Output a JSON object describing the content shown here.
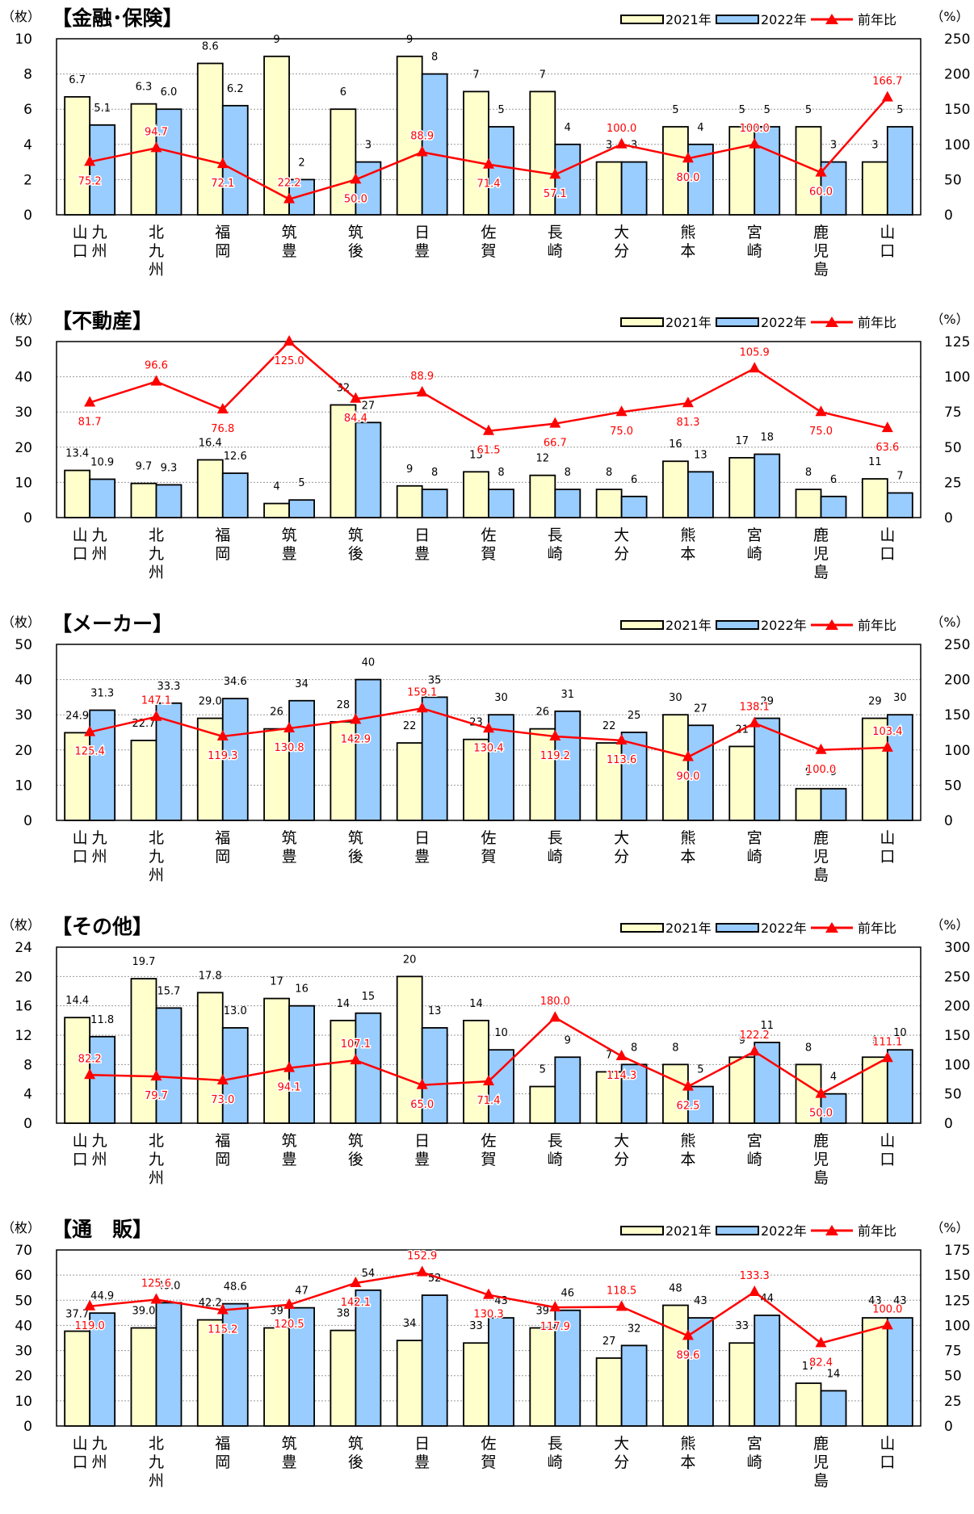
{
  "legend": {
    "bar1": "2021年",
    "bar2": "2022年",
    "line": "前年比"
  },
  "colors": {
    "bar1": "#ffffcc",
    "bar2": "#99ccff",
    "line": "#ff0000",
    "label": "#ff0000",
    "text": "#000000"
  },
  "chart_data": [
    {
      "type": "bar",
      "title": "【金融･保険】",
      "y_unit": "（枚）",
      "y2_unit": "（%）",
      "ylim": [
        0,
        10
      ],
      "yticks": [
        0,
        2,
        4,
        6,
        8,
        10
      ],
      "y2lim": [
        0,
        250
      ],
      "y2ticks": [
        0,
        50,
        100,
        150,
        200,
        250
      ],
      "categories": [
        "山口九州",
        "北九州",
        "福岡",
        "筑豊",
        "筑後",
        "日豊",
        "佐賀",
        "長崎",
        "大分",
        "熊本",
        "宮崎",
        "鹿児島",
        "山口"
      ],
      "category_labels": [
        [
          "山口",
          "九州"
        ],
        [
          "北九州"
        ],
        [
          "福岡"
        ],
        [
          "筑豊"
        ],
        [
          "筑後"
        ],
        [
          "日豊"
        ],
        [
          "佐賀"
        ],
        [
          "長崎"
        ],
        [
          "大分"
        ],
        [
          "熊本"
        ],
        [
          "宮崎"
        ],
        [
          "鹿児島"
        ],
        [
          "山口"
        ]
      ],
      "series": [
        {
          "name": "2021年",
          "values": [
            6.7,
            6.3,
            8.6,
            9,
            6,
            9,
            7,
            7,
            3,
            5,
            5,
            5,
            3
          ],
          "labels": [
            "6.7",
            "6.3",
            "8.6",
            "9",
            "6",
            "9",
            "7",
            "7",
            "3",
            "5",
            "5",
            "5",
            "3"
          ]
        },
        {
          "name": "2022年",
          "values": [
            5.1,
            6.0,
            6.2,
            2,
            3,
            8,
            5,
            4,
            3,
            4,
            5,
            3,
            5
          ],
          "labels": [
            "5.1",
            "6.0",
            "6.2",
            "2",
            "3",
            "8",
            "5",
            "4",
            "3",
            "4",
            "5",
            "3",
            "5"
          ]
        },
        {
          "name": "前年比",
          "axis": "y2",
          "values": [
            75.2,
            94.7,
            72.1,
            22.2,
            50.0,
            88.9,
            71.4,
            57.1,
            100.0,
            80.0,
            100.0,
            60.0,
            166.7
          ],
          "labels": [
            "75.2",
            "94.7",
            "72.1",
            "22.2",
            "50.0",
            "88.9",
            "71.4",
            "57.1",
            "100.0",
            "80.0",
            "100.0",
            "60.0",
            "166.7"
          ]
        }
      ]
    },
    {
      "type": "bar",
      "title": "【不動産】",
      "y_unit": "（枚）",
      "y2_unit": "（%）",
      "ylim": [
        0,
        50
      ],
      "yticks": [
        0,
        10,
        20,
        30,
        40,
        50
      ],
      "y2lim": [
        0,
        125
      ],
      "y2ticks": [
        0,
        25,
        50,
        75,
        100,
        125
      ],
      "categories": [
        "山口九州",
        "北九州",
        "福岡",
        "筑豊",
        "筑後",
        "日豊",
        "佐賀",
        "長崎",
        "大分",
        "熊本",
        "宮崎",
        "鹿児島",
        "山口"
      ],
      "category_labels": [
        [
          "山口",
          "九州"
        ],
        [
          "北九州"
        ],
        [
          "福岡"
        ],
        [
          "筑豊"
        ],
        [
          "筑後"
        ],
        [
          "日豊"
        ],
        [
          "佐賀"
        ],
        [
          "長崎"
        ],
        [
          "大分"
        ],
        [
          "熊本"
        ],
        [
          "宮崎"
        ],
        [
          "鹿児島"
        ],
        [
          "山口"
        ]
      ],
      "series": [
        {
          "name": "2021年",
          "values": [
            13.4,
            9.7,
            16.4,
            4,
            32,
            9,
            13,
            12,
            8,
            16,
            17,
            8,
            11
          ],
          "labels": [
            "13.4",
            "9.7",
            "16.4",
            "4",
            "32",
            "9",
            "13",
            "12",
            "8",
            "16",
            "17",
            "8",
            "11"
          ]
        },
        {
          "name": "2022年",
          "values": [
            10.9,
            9.3,
            12.6,
            5,
            27,
            8,
            8,
            8,
            6,
            13,
            18,
            6,
            7
          ],
          "labels": [
            "10.9",
            "9.3",
            "12.6",
            "5",
            "27",
            "8",
            "8",
            "8",
            "6",
            "13",
            "18",
            "6",
            "7"
          ]
        },
        {
          "name": "前年比",
          "axis": "y2",
          "values": [
            81.7,
            96.6,
            76.8,
            125.0,
            84.4,
            88.9,
            61.5,
            66.7,
            75.0,
            81.3,
            105.9,
            75.0,
            63.6
          ],
          "labels": [
            "81.7",
            "96.6",
            "76.8",
            "125.0",
            "84.4",
            "88.9",
            "61.5",
            "66.7",
            "75.0",
            "81.3",
            "105.9",
            "75.0",
            "63.6"
          ]
        }
      ]
    },
    {
      "type": "bar",
      "title": "【メーカー】",
      "y_unit": "（枚）",
      "y2_unit": "（%）",
      "ylim": [
        0,
        50
      ],
      "yticks": [
        0,
        10,
        20,
        30,
        40,
        50
      ],
      "y2lim": [
        0,
        250
      ],
      "y2ticks": [
        0,
        50,
        100,
        150,
        200,
        250
      ],
      "categories": [
        "山口九州",
        "北九州",
        "福岡",
        "筑豊",
        "筑後",
        "日豊",
        "佐賀",
        "長崎",
        "大分",
        "熊本",
        "宮崎",
        "鹿児島",
        "山口"
      ],
      "category_labels": [
        [
          "山口",
          "九州"
        ],
        [
          "北九州"
        ],
        [
          "福岡"
        ],
        [
          "筑豊"
        ],
        [
          "筑後"
        ],
        [
          "日豊"
        ],
        [
          "佐賀"
        ],
        [
          "長崎"
        ],
        [
          "大分"
        ],
        [
          "熊本"
        ],
        [
          "宮崎"
        ],
        [
          "鹿児島"
        ],
        [
          "山口"
        ]
      ],
      "series": [
        {
          "name": "2021年",
          "values": [
            24.9,
            22.7,
            29.0,
            26,
            28,
            22,
            23,
            26,
            22,
            30,
            21,
            9,
            29
          ],
          "labels": [
            "24.9",
            "22.7",
            "29.0",
            "26",
            "28",
            "22",
            "23",
            "26",
            "22",
            "30",
            "21",
            "9",
            "29"
          ]
        },
        {
          "name": "2022年",
          "values": [
            31.3,
            33.3,
            34.6,
            34,
            40,
            35,
            30,
            31,
            25,
            27,
            29,
            9,
            30
          ],
          "labels": [
            "31.3",
            "33.3",
            "34.6",
            "34",
            "40",
            "35",
            "30",
            "31",
            "25",
            "27",
            "29",
            "9",
            "30"
          ]
        },
        {
          "name": "前年比",
          "axis": "y2",
          "values": [
            125.4,
            147.1,
            119.3,
            130.8,
            142.9,
            159.1,
            130.4,
            119.2,
            113.6,
            90.0,
            138.1,
            100.0,
            103.4
          ],
          "labels": [
            "125.4",
            "147.1",
            "119.3",
            "130.8",
            "142.9",
            "159.1",
            "130.4",
            "119.2",
            "113.6",
            "90.0",
            "138.1",
            "100.0",
            "103.4"
          ]
        }
      ]
    },
    {
      "type": "bar",
      "title": "【その他】",
      "y_unit": "（枚）",
      "y2_unit": "（%）",
      "ylim": [
        0,
        24
      ],
      "yticks": [
        0,
        4,
        8,
        12,
        16,
        20,
        24
      ],
      "y2lim": [
        0,
        300
      ],
      "y2ticks": [
        0,
        50,
        100,
        150,
        200,
        250,
        300
      ],
      "categories": [
        "山口九州",
        "北九州",
        "福岡",
        "筑豊",
        "筑後",
        "日豊",
        "佐賀",
        "長崎",
        "大分",
        "熊本",
        "宮崎",
        "鹿児島",
        "山口"
      ],
      "category_labels": [
        [
          "山口",
          "九州"
        ],
        [
          "北九州"
        ],
        [
          "福岡"
        ],
        [
          "筑豊"
        ],
        [
          "筑後"
        ],
        [
          "日豊"
        ],
        [
          "佐賀"
        ],
        [
          "長崎"
        ],
        [
          "大分"
        ],
        [
          "熊本"
        ],
        [
          "宮崎"
        ],
        [
          "鹿児島"
        ],
        [
          "山口"
        ]
      ],
      "series": [
        {
          "name": "2021年",
          "values": [
            14.4,
            19.7,
            17.8,
            17,
            14,
            20,
            14,
            5,
            7,
            8,
            9,
            8,
            9
          ],
          "labels": [
            "14.4",
            "19.7",
            "17.8",
            "17",
            "14",
            "20",
            "14",
            "5",
            "7",
            "8",
            "9",
            "8",
            "9"
          ]
        },
        {
          "name": "2022年",
          "values": [
            11.8,
            15.7,
            13.0,
            16,
            15,
            13,
            10,
            9,
            8,
            5,
            11,
            4,
            10
          ],
          "labels": [
            "11.8",
            "15.7",
            "13.0",
            "16",
            "15",
            "13",
            "10",
            "9",
            "8",
            "5",
            "11",
            "4",
            "10"
          ]
        },
        {
          "name": "前年比",
          "axis": "y2",
          "values": [
            82.2,
            79.7,
            73.0,
            94.1,
            107.1,
            65.0,
            71.4,
            180.0,
            114.3,
            62.5,
            122.2,
            50.0,
            111.1
          ],
          "labels": [
            "82.2",
            "79.7",
            "73.0",
            "94.1",
            "107.1",
            "65.0",
            "71.4",
            "180.0",
            "114.3",
            "62.5",
            "122.2",
            "50.0",
            "111.1"
          ]
        }
      ]
    },
    {
      "type": "bar",
      "title": "【通　販】",
      "y_unit": "（枚）",
      "y2_unit": "（%）",
      "ylim": [
        0,
        70
      ],
      "yticks": [
        0,
        10,
        20,
        30,
        40,
        50,
        60,
        70
      ],
      "y2lim": [
        0,
        175
      ],
      "y2ticks": [
        0,
        25,
        50,
        75,
        100,
        125,
        150,
        175
      ],
      "categories": [
        "山口九州",
        "北九州",
        "福岡",
        "筑豊",
        "筑後",
        "日豊",
        "佐賀",
        "長崎",
        "大分",
        "熊本",
        "宮崎",
        "鹿児島",
        "山口"
      ],
      "category_labels": [
        [
          "山口",
          "九州"
        ],
        [
          "北九州"
        ],
        [
          "福岡"
        ],
        [
          "筑豊"
        ],
        [
          "筑後"
        ],
        [
          "日豊"
        ],
        [
          "佐賀"
        ],
        [
          "長崎"
        ],
        [
          "大分"
        ],
        [
          "熊本"
        ],
        [
          "宮崎"
        ],
        [
          "鹿児島"
        ],
        [
          "山口"
        ]
      ],
      "series": [
        {
          "name": "2021年",
          "values": [
            37.7,
            39.0,
            42.2,
            39,
            38,
            34,
            33,
            39,
            27,
            48,
            33,
            17,
            43
          ],
          "labels": [
            "37.7",
            "39.0",
            "42.2",
            "39",
            "38",
            "34",
            "33",
            "39",
            "27",
            "48",
            "33",
            "17",
            "43"
          ]
        },
        {
          "name": "2022年",
          "values": [
            44.9,
            49.0,
            48.6,
            47,
            54,
            52,
            43,
            46,
            32,
            43,
            44,
            14,
            43
          ],
          "labels": [
            "44.9",
            "49.0",
            "48.6",
            "47",
            "54",
            "52",
            "43",
            "46",
            "32",
            "43",
            "44",
            "14",
            "43"
          ]
        },
        {
          "name": "前年比",
          "axis": "y2",
          "values": [
            119.0,
            125.6,
            115.2,
            120.5,
            142.1,
            152.9,
            130.3,
            117.9,
            118.5,
            89.6,
            133.3,
            82.4,
            100.0
          ],
          "labels": [
            "119.0",
            "125.6",
            "115.2",
            "120.5",
            "142.1",
            "152.9",
            "130.3",
            "117.9",
            "118.5",
            "89.6",
            "133.3",
            "82.4",
            "100.0"
          ]
        }
      ]
    }
  ]
}
